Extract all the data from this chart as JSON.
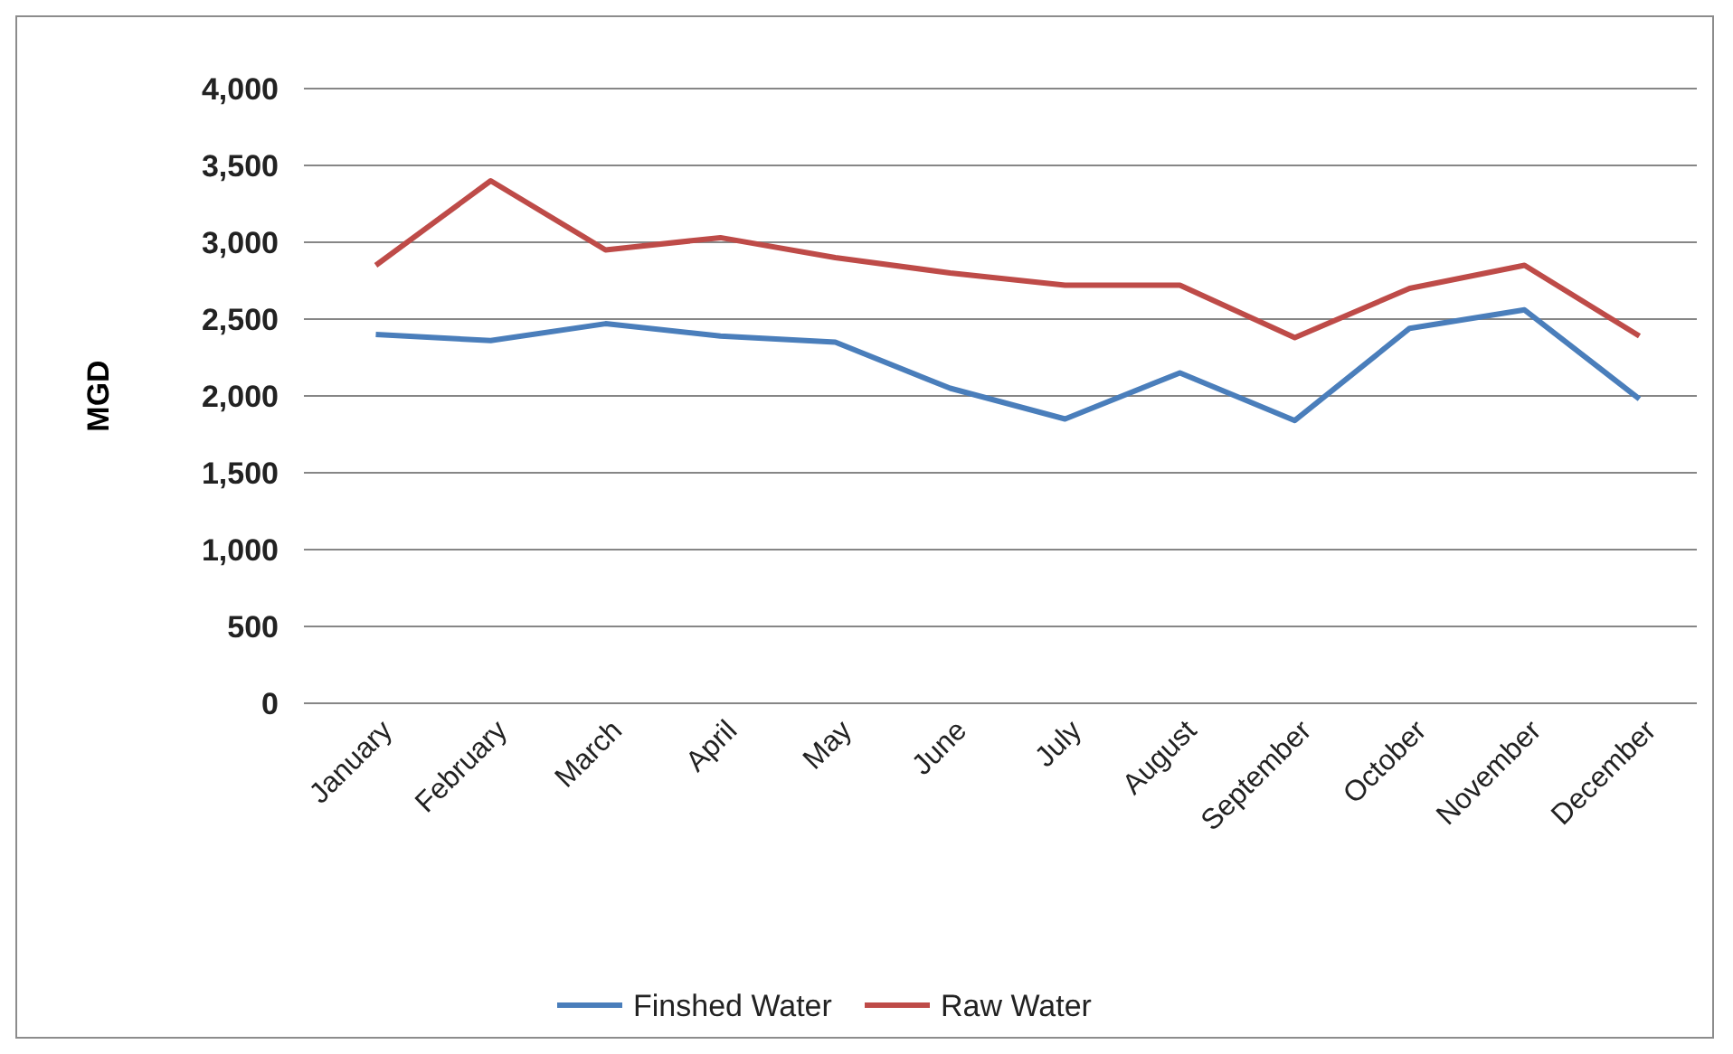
{
  "chart_data": {
    "type": "line",
    "ylabel": "MGD",
    "categories": [
      "January",
      "February",
      "March",
      "April",
      "May",
      "June",
      "July",
      "August",
      "September",
      "October",
      "November",
      "December"
    ],
    "series": [
      {
        "name": "Finshed Water",
        "color": "#4a7ebb",
        "values": [
          2400,
          2360,
          2470,
          2390,
          2350,
          2050,
          1850,
          2150,
          1840,
          2440,
          2560,
          1980
        ]
      },
      {
        "name": "Raw Water",
        "color": "#be4b48",
        "values": [
          2850,
          3400,
          2950,
          3030,
          2900,
          2800,
          2720,
          2720,
          2380,
          2700,
          2850,
          2390
        ]
      }
    ],
    "ylim": [
      0,
      4000
    ],
    "yticks": [
      {
        "value": 0,
        "label": "0"
      },
      {
        "value": 500,
        "label": "500"
      },
      {
        "value": 1000,
        "label": "1,000"
      },
      {
        "value": 1500,
        "label": "1,500"
      },
      {
        "value": 2000,
        "label": "2,000"
      },
      {
        "value": 2500,
        "label": "2,500"
      },
      {
        "value": 3000,
        "label": "3,000"
      },
      {
        "value": 3500,
        "label": "3,500"
      },
      {
        "value": 4000,
        "label": "4,000"
      }
    ],
    "grid": "y",
    "legend": "bottom",
    "marker": "none",
    "line_style": "solid"
  }
}
